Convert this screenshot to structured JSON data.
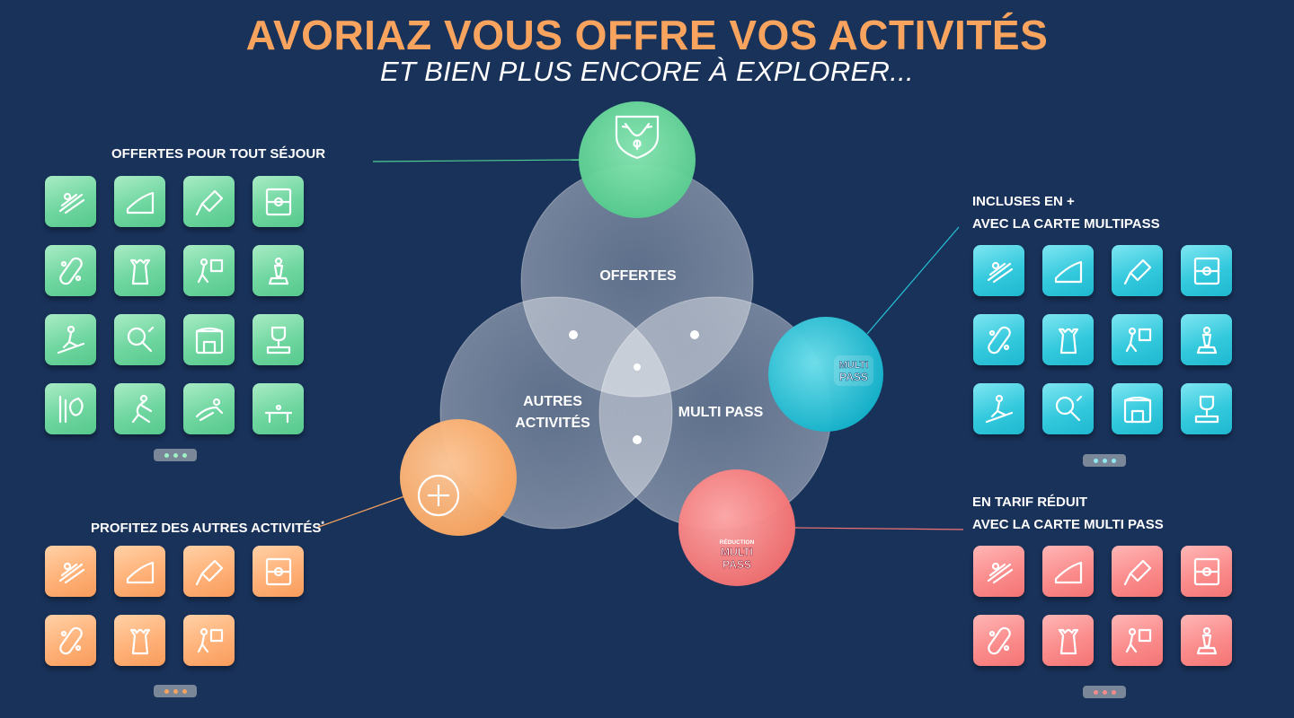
{
  "header": {
    "title": "AVORIAZ VOUS OFFRE VOS ACTIVITÉS",
    "subtitle": "ET BIEN PLUS ENCORE À EXPLORER..."
  },
  "sections": {
    "offertes": {
      "label": "OFFERTES POUR TOUT SÉJOUR",
      "color": "#6fd6a0",
      "icons": [
        "sledding-icon",
        "skate-ramp-icon",
        "badminton-icon",
        "football-field-icon",
        "skateboard-icon",
        "chess-rook-icon",
        "volleyball-icon",
        "statue-icon",
        "slackline-icon",
        "ping-pong-icon",
        "inflatable-castle-icon",
        "trophy-podium-icon",
        "painting-palette-icon",
        "gymnastics-icon",
        "paragliding-icon",
        "table-icon"
      ]
    },
    "incluses": {
      "label_line1": "INCLUSES EN +",
      "label_line2": "AVEC LA CARTE MULTIPASS",
      "color": "#34c9dd",
      "icons": [
        "pool-palm-icon",
        "trampoline-icon",
        "bouncy-castle-icon",
        "sand-bucket-icon",
        "tennis-racket-icon",
        "climbing-wall-icon",
        "squash-icon",
        "padel-icon",
        "cinema-clapper-icon",
        "mini-golf-icon",
        "theater-icon",
        "target-icon"
      ]
    },
    "autres": {
      "label": "PROFITEZ DES AUTRES ACTIVITÉS",
      "label_mark": "*",
      "color": "#ffb178",
      "icons": [
        "rock-climbing-icon",
        "canyoning-icon",
        "horse-riding-icon",
        "diving-icon",
        "farm-tractor-icon",
        "mountain-bike-icon",
        "kart-icon"
      ]
    },
    "reduit": {
      "label_line1": "EN TARIF RÉDUIT",
      "label_line2": "AVEC LA CARTE MULTI PASS",
      "color": "#fb8c8c",
      "icons": [
        "bicycle-icon",
        "spa-face-icon",
        "golf-icon",
        "horse-icon",
        "zipline-icon",
        "parachute-icon",
        "bowling-icon",
        "scooter-icon"
      ]
    }
  },
  "venn": {
    "offertes_label": "OFFERTES",
    "autres_label_line1": "AUTRES",
    "autres_label_line2": "ACTIVITÉS",
    "multipass_label": "MULTI PASS",
    "badge_multi": "MULTI",
    "badge_pass": "PASS",
    "badge_reduction": "RÉDUCTION"
  },
  "colors": {
    "background": "#19325a",
    "title": "#f9a45e",
    "green": "#6fd6a0",
    "cyan": "#1eb8cf",
    "orange": "#f9a45e",
    "coral": "#f47474"
  }
}
